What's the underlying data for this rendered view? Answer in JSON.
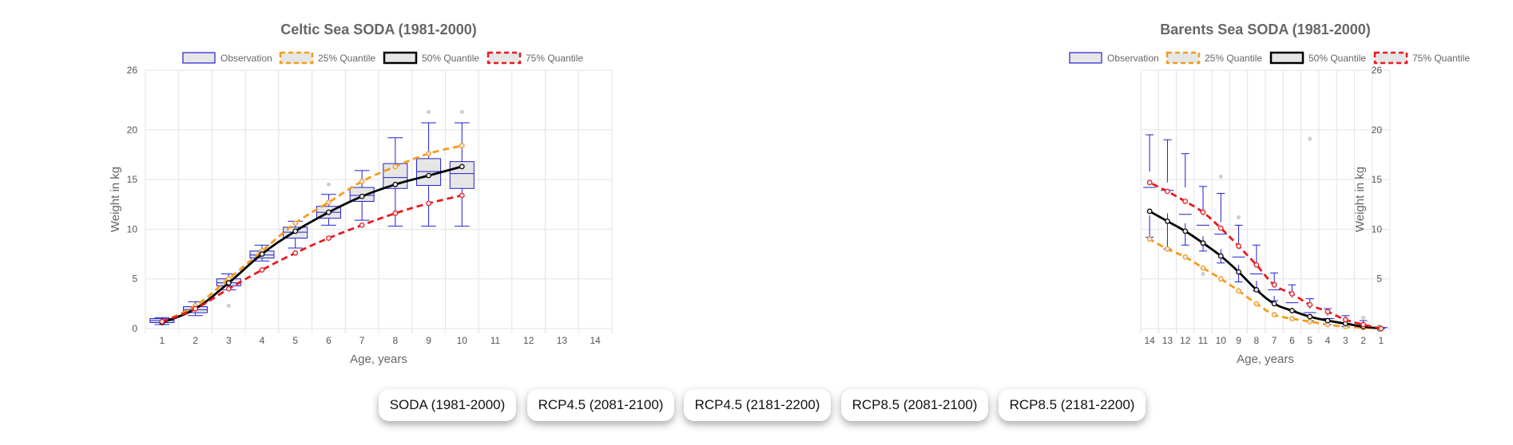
{
  "colors": {
    "observation_stroke": "#2020d0",
    "observation_fill": "#e6e6e6",
    "q25": "#f59c1a",
    "q50": "#000000",
    "q75": "#e8191f",
    "grid": "#e3e3e3",
    "outlier": "#cfcfcf"
  },
  "legend": {
    "observation": "Observation",
    "q25": "25% Quantile",
    "q50": "50% Quantile",
    "q75": "75% Quantile"
  },
  "buttons": [
    {
      "label": "SODA (1981-2000)"
    },
    {
      "label": "RCP4.5 (2081-2100)"
    },
    {
      "label": "RCP4.5 (2181-2200)"
    },
    {
      "label": "RCP8.5 (2081-2100)"
    },
    {
      "label": "RCP8.5 (2181-2200)"
    }
  ],
  "chart_data": [
    {
      "type": "box",
      "title": "Celtic Sea SODA (1981-2000)",
      "xlabel": "Age, years",
      "ylabel": "Weight in kg",
      "categories": [
        "1",
        "2",
        "3",
        "4",
        "5",
        "6",
        "7",
        "8",
        "9",
        "10",
        "11",
        "12",
        "13",
        "14"
      ],
      "ylim": [
        0,
        26
      ],
      "yticks": [
        0,
        5,
        10,
        15,
        20,
        26
      ],
      "grid": true,
      "legend_position": "top",
      "boxes": [
        {
          "x": 1,
          "min": 0.4,
          "q1": 0.6,
          "median": 0.8,
          "q3": 1.0,
          "max": 1.1
        },
        {
          "x": 2,
          "min": 1.3,
          "q1": 1.6,
          "median": 1.9,
          "q3": 2.2,
          "max": 2.7
        },
        {
          "x": 3,
          "min": 3.9,
          "q1": 4.3,
          "median": 4.6,
          "q3": 5.0,
          "max": 5.5
        },
        {
          "x": 4,
          "min": 6.8,
          "q1": 7.1,
          "median": 7.4,
          "q3": 7.8,
          "max": 8.4
        },
        {
          "x": 5,
          "min": 8.1,
          "q1": 9.1,
          "median": 9.7,
          "q3": 10.2,
          "max": 10.8
        },
        {
          "x": 6,
          "min": 10.4,
          "q1": 11.1,
          "median": 11.7,
          "q3": 12.3,
          "max": 13.5
        },
        {
          "x": 7,
          "min": 10.9,
          "q1": 12.8,
          "median": 13.4,
          "q3": 14.2,
          "max": 15.9
        },
        {
          "x": 8,
          "min": 10.3,
          "q1": 14.1,
          "median": 15.2,
          "q3": 16.6,
          "max": 19.2
        },
        {
          "x": 9,
          "min": 10.3,
          "q1": 14.4,
          "median": 15.8,
          "q3": 17.1,
          "max": 20.7
        },
        {
          "x": 10,
          "min": 10.3,
          "q1": 14.1,
          "median": 15.6,
          "q3": 16.8,
          "max": 20.7
        }
      ],
      "outliers": [
        [
          3,
          2.3
        ],
        [
          6,
          14.5
        ],
        [
          9,
          21.8
        ],
        [
          10,
          21.8
        ]
      ],
      "series": [
        {
          "name": "25% Quantile",
          "x": [
            1,
            2,
            3,
            4,
            5,
            6,
            7,
            8,
            9,
            10
          ],
          "values": [
            0.7,
            2.3,
            5.0,
            7.8,
            10.6,
            12.7,
            14.8,
            16.3,
            17.6,
            18.4
          ]
        },
        {
          "name": "50% Quantile",
          "x": [
            1,
            2,
            3,
            4,
            5,
            6,
            7,
            8,
            9,
            10
          ],
          "values": [
            0.6,
            2.0,
            4.6,
            7.5,
            9.8,
            11.7,
            13.3,
            14.5,
            15.4,
            16.3
          ]
        },
        {
          "name": "75% Quantile",
          "x": [
            1,
            2,
            3,
            4,
            5,
            6,
            7,
            8,
            9,
            10
          ],
          "values": [
            0.7,
            2.0,
            4.0,
            5.9,
            7.6,
            9.1,
            10.4,
            11.6,
            12.6,
            13.4
          ]
        }
      ]
    },
    {
      "type": "box",
      "title": "Barents Sea SODA (1981-2000)",
      "xlabel": "Age, years",
      "ylabel": "Weight in kg",
      "categories": [
        "1",
        "2",
        "3",
        "4",
        "5",
        "6",
        "7",
        "8",
        "9",
        "10",
        "11",
        "12",
        "13",
        "14"
      ],
      "ylim": [
        0,
        26
      ],
      "yticks": [
        0,
        5,
        10,
        15,
        20,
        26
      ],
      "grid": true,
      "legend_position": "top",
      "boxes": [
        {
          "x": 1,
          "min": 0.0,
          "q1": 0.0,
          "median": 0.1,
          "q3": 0.1,
          "max": 0.1
        },
        {
          "x": 2,
          "min": 0.1,
          "q1": 0.2,
          "median": 0.3,
          "q3": 0.5,
          "max": 0.8
        },
        {
          "x": 3,
          "min": 0.2,
          "q1": 0.3,
          "median": 0.5,
          "q3": 0.8,
          "max": 1.3
        },
        {
          "x": 4,
          "min": 0.4,
          "q1": 0.7,
          "median": 1.0,
          "q3": 1.3,
          "max": 2.0
        },
        {
          "x": 5,
          "min": 0.8,
          "q1": 1.3,
          "median": 1.6,
          "q3": 2.0,
          "max": 3.0
        },
        {
          "x": 6,
          "min": 1.8,
          "q1": 2.1,
          "median": 2.6,
          "q3": 3.1,
          "max": 4.4
        },
        {
          "x": 7,
          "min": 2.8,
          "q1": 3.3,
          "median": 3.9,
          "q3": 4.4,
          "max": 5.6
        },
        {
          "x": 8,
          "min": 3.8,
          "q1": 4.8,
          "median": 5.5,
          "q3": 6.4,
          "max": 8.4
        },
        {
          "x": 9,
          "min": 4.7,
          "q1": 6.4,
          "median": 7.2,
          "q3": 8.0,
          "max": 10.4
        },
        {
          "x": 10,
          "min": 6.6,
          "q1": 8.0,
          "median": 9.5,
          "q3": 10.7,
          "max": 13.6
        },
        {
          "x": 11,
          "min": 7.8,
          "q1": 9.3,
          "median": 10.4,
          "q3": 11.4,
          "max": 14.3
        },
        {
          "x": 12,
          "min": 8.4,
          "q1": 10.6,
          "median": 11.5,
          "q3": 14.2,
          "max": 17.6
        },
        {
          "x": 13,
          "min": 8.0,
          "q1": 11.6,
          "median": 13.9,
          "q3": 14.7,
          "max": 19.0
        },
        {
          "x": 14,
          "min": 9.2,
          "q1": 11.4,
          "median": 14.2,
          "q3": 15.8,
          "max": 19.5
        }
      ],
      "outliers": [
        [
          2,
          1.1
        ],
        [
          5,
          19.1
        ],
        [
          9,
          11.2
        ],
        [
          10,
          15.3
        ],
        [
          11,
          5.5
        ]
      ],
      "series": [
        {
          "name": "25% Quantile",
          "x": [
            1,
            2,
            3,
            4,
            5,
            6,
            7,
            8,
            9,
            10,
            11,
            12,
            13,
            14
          ],
          "values": [
            0.0,
            0.1,
            0.2,
            0.4,
            0.7,
            1.0,
            1.4,
            2.5,
            3.8,
            5.0,
            6.1,
            7.2,
            8.0,
            9.0
          ]
        },
        {
          "name": "50% Quantile",
          "x": [
            1,
            2,
            3,
            4,
            5,
            6,
            7,
            8,
            9,
            10,
            11,
            12,
            13,
            14
          ],
          "values": [
            0.0,
            0.2,
            0.5,
            0.8,
            1.2,
            1.8,
            2.5,
            3.9,
            5.7,
            7.3,
            8.6,
            9.8,
            10.8,
            11.8
          ]
        },
        {
          "name": "75% Quantile",
          "x": [
            1,
            2,
            3,
            4,
            5,
            6,
            7,
            8,
            9,
            10,
            11,
            12,
            13,
            14
          ],
          "values": [
            0.0,
            0.4,
            0.9,
            1.7,
            2.4,
            3.5,
            4.4,
            6.4,
            8.3,
            10.1,
            11.7,
            12.8,
            13.8,
            14.7
          ]
        }
      ]
    }
  ]
}
